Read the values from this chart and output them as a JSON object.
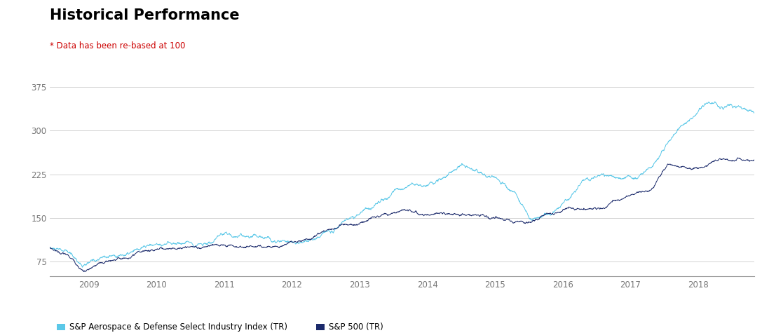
{
  "title": "Historical Performance",
  "subtitle": "* Data has been re-based at 100",
  "title_color": "#000000",
  "subtitle_color": "#cc0000",
  "background_color": "#ffffff",
  "line1_label": "S&P Aerospace & Defense Select Industry Index (TR)",
  "line2_label": "S&P 500 (TR)",
  "line1_color": "#5bc8e8",
  "line2_color": "#1b2a6b",
  "ylim": [
    50,
    410
  ],
  "yticks": [
    75,
    150,
    225,
    300,
    375
  ],
  "x_start_year": 2008.42,
  "x_end_year": 2018.83,
  "xtick_years": [
    "2009",
    "2010",
    "2011",
    "2012",
    "2013",
    "2014",
    "2015",
    "2016",
    "2017",
    "2018"
  ],
  "grid_color": "#cccccc",
  "axis_color": "#999999",
  "tick_color": "#777777"
}
